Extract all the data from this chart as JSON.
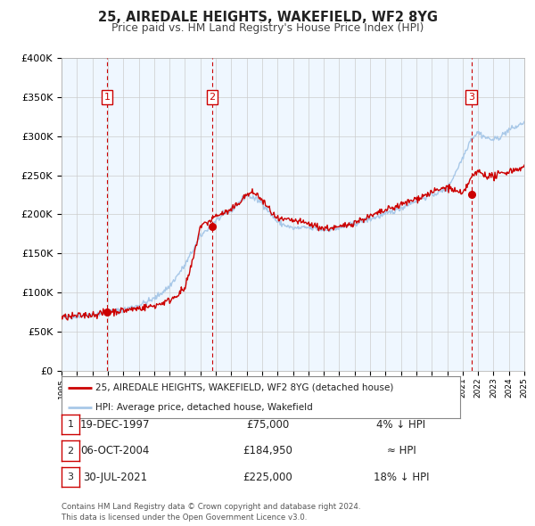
{
  "title": "25, AIREDALE HEIGHTS, WAKEFIELD, WF2 8YG",
  "subtitle": "Price paid vs. HM Land Registry's House Price Index (HPI)",
  "bg_color": "#ffffff",
  "plot_bg_color": "#ffffff",
  "grid_color": "#cccccc",
  "xmin": 1995,
  "xmax": 2025,
  "ymin": 0,
  "ymax": 400000,
  "yticks": [
    0,
    50000,
    100000,
    150000,
    200000,
    250000,
    300000,
    350000,
    400000
  ],
  "ytick_labels": [
    "£0",
    "£50K",
    "£100K",
    "£150K",
    "£200K",
    "£250K",
    "£300K",
    "£350K",
    "£400K"
  ],
  "xticks": [
    1995,
    1996,
    1997,
    1998,
    1999,
    2000,
    2001,
    2002,
    2003,
    2004,
    2005,
    2006,
    2007,
    2008,
    2009,
    2010,
    2011,
    2012,
    2013,
    2014,
    2015,
    2016,
    2017,
    2018,
    2019,
    2020,
    2021,
    2022,
    2023,
    2024,
    2025
  ],
  "sale_color": "#cc0000",
  "hpi_color": "#a8c8e8",
  "sale_dot_color": "#cc0000",
  "vline_color": "#cc0000",
  "shade_color": "#ddeeff",
  "sale_transactions": [
    {
      "year": 1997.96,
      "price": 75000,
      "label": "1",
      "date": "19-DEC-1997"
    },
    {
      "year": 2004.76,
      "price": 184950,
      "label": "2",
      "date": "06-OCT-2004"
    },
    {
      "year": 2021.57,
      "price": 225000,
      "label": "3",
      "date": "30-JUL-2021"
    }
  ],
  "legend_sale_label": "25, AIREDALE HEIGHTS, WAKEFIELD, WF2 8YG (detached house)",
  "legend_hpi_label": "HPI: Average price, detached house, Wakefield",
  "table_rows": [
    {
      "num": "1",
      "date": "19-DEC-1997",
      "price": "£75,000",
      "relation": "4% ↓ HPI"
    },
    {
      "num": "2",
      "date": "06-OCT-2004",
      "price": "£184,950",
      "relation": "≈ HPI"
    },
    {
      "num": "3",
      "date": "30-JUL-2021",
      "price": "£225,000",
      "relation": "18% ↓ HPI"
    }
  ],
  "footer": "Contains HM Land Registry data © Crown copyright and database right 2024.\nThis data is licensed under the Open Government Licence v3.0."
}
